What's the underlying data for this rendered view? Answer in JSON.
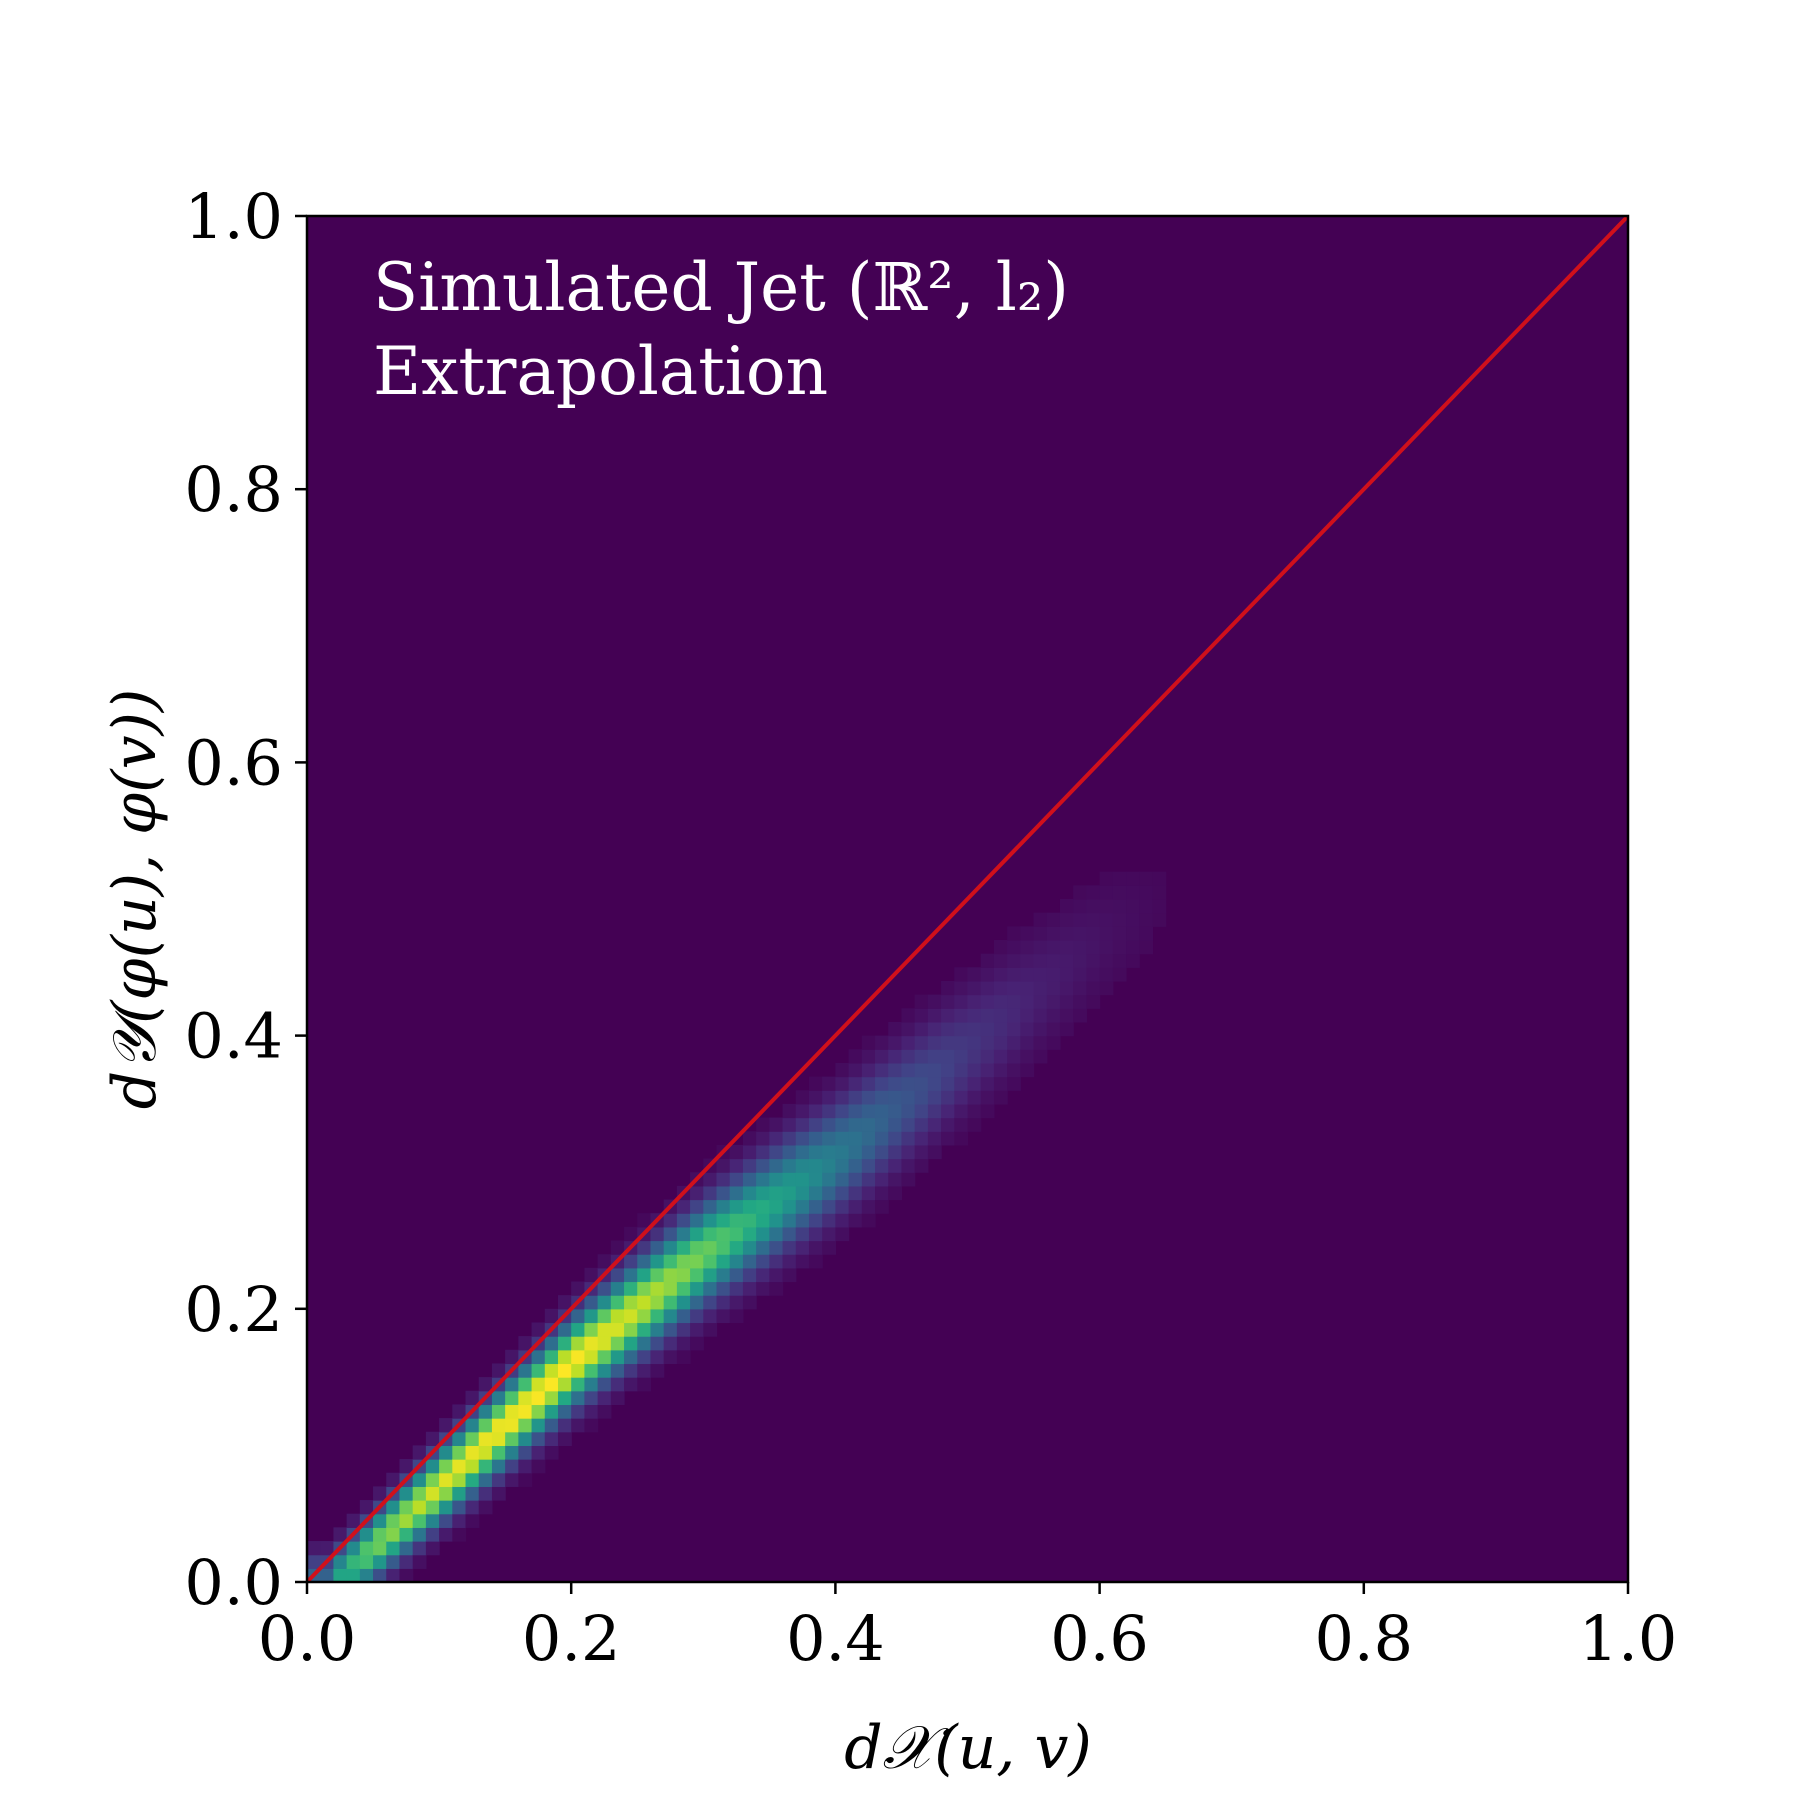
{
  "chart_data": {
    "type": "heatmap",
    "title": "",
    "annotation_lines": [
      "Simulated Jet (ℝ², l₂)",
      "Extrapolation"
    ],
    "xlabel": "d𝒳(u, v)",
    "ylabel": "d𝒴(φ(u), φ(v))",
    "xlim": [
      0,
      1
    ],
    "ylim": [
      0,
      1
    ],
    "x_ticks": [
      0.0,
      0.2,
      0.4,
      0.6,
      0.8,
      1.0
    ],
    "y_ticks": [
      0.0,
      0.2,
      0.4,
      0.6,
      0.8,
      1.0
    ],
    "x_tick_labels": [
      "0.0",
      "0.2",
      "0.4",
      "0.6",
      "0.8",
      "1.0"
    ],
    "y_tick_labels": [
      "0.0",
      "0.2",
      "0.4",
      "0.6",
      "0.8",
      "1.0"
    ],
    "colormap": "viridis",
    "background_color": "#440154",
    "grid": false,
    "reference_line": {
      "x": [
        0,
        1
      ],
      "y": [
        0,
        1
      ],
      "color": "#d0101b"
    },
    "density_ridge": {
      "x": [
        0.02,
        0.05,
        0.1,
        0.15,
        0.2,
        0.25,
        0.3,
        0.35,
        0.4,
        0.45,
        0.5,
        0.55,
        0.6,
        0.65
      ],
      "y": [
        0.0,
        0.025,
        0.07,
        0.115,
        0.16,
        0.2,
        0.24,
        0.275,
        0.31,
        0.35,
        0.39,
        0.43,
        0.47,
        0.5
      ],
      "relative_density": [
        0.55,
        0.78,
        0.95,
        1.0,
        1.0,
        0.92,
        0.78,
        0.6,
        0.42,
        0.27,
        0.16,
        0.09,
        0.05,
        0.02
      ]
    }
  }
}
